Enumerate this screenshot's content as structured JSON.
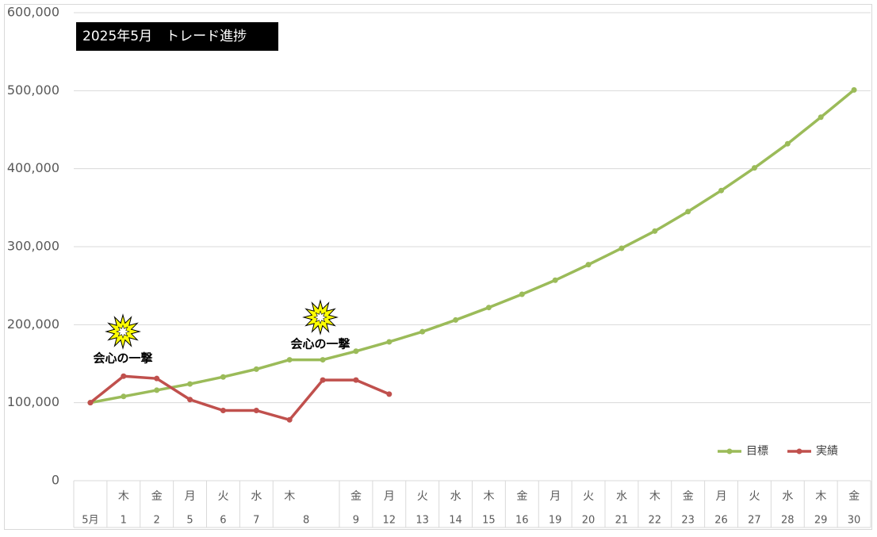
{
  "chart_data": {
    "type": "line",
    "title": "2025年5月　トレード進捗",
    "categories": [
      "5月",
      "1",
      "2",
      "5",
      "6",
      "7",
      "8",
      null,
      "9",
      "12",
      "13",
      "14",
      "15",
      "16",
      "19",
      "20",
      "21",
      "22",
      "23",
      "26",
      "27",
      "28",
      "29",
      "30"
    ],
    "weekdays": [
      null,
      "木",
      "金",
      "月",
      "火",
      "水",
      "木",
      null,
      "金",
      "月",
      "火",
      "水",
      "木",
      "金",
      "月",
      "火",
      "水",
      "木",
      "金",
      "月",
      "火",
      "水",
      "木",
      "金"
    ],
    "series": [
      {
        "name": "目標",
        "color": "#9bbb59",
        "values": [
          100000,
          108000,
          116000,
          124000,
          133000,
          143000,
          155000,
          155000,
          166000,
          178000,
          191000,
          206000,
          222000,
          239000,
          257000,
          277000,
          298000,
          320000,
          345000,
          372000,
          401000,
          432000,
          466000,
          501000
        ]
      },
      {
        "name": "実績",
        "color": "#c0504d",
        "values": [
          100000,
          134000,
          131000,
          104000,
          90000,
          90000,
          78000,
          129000,
          129000,
          111000,
          null,
          null,
          null,
          null,
          null,
          null,
          null,
          null,
          null,
          null,
          null,
          null,
          null,
          null
        ]
      }
    ],
    "ylim": [
      0,
      600000
    ],
    "yticks": [
      0,
      {
        "value": 100000,
        "label": "100,000"
      },
      {
        "value": 200000,
        "label": "200,000"
      },
      {
        "value": 300000,
        "label": "300,000"
      },
      {
        "value": 400000,
        "label": "400,000"
      },
      {
        "value": 500000,
        "label": "500,000"
      },
      {
        "value": 600000,
        "label": "600,000"
      }
    ],
    "grid": true,
    "legend": "lower right",
    "annotations": [
      "会心の一撃",
      "会心の一撃"
    ]
  }
}
